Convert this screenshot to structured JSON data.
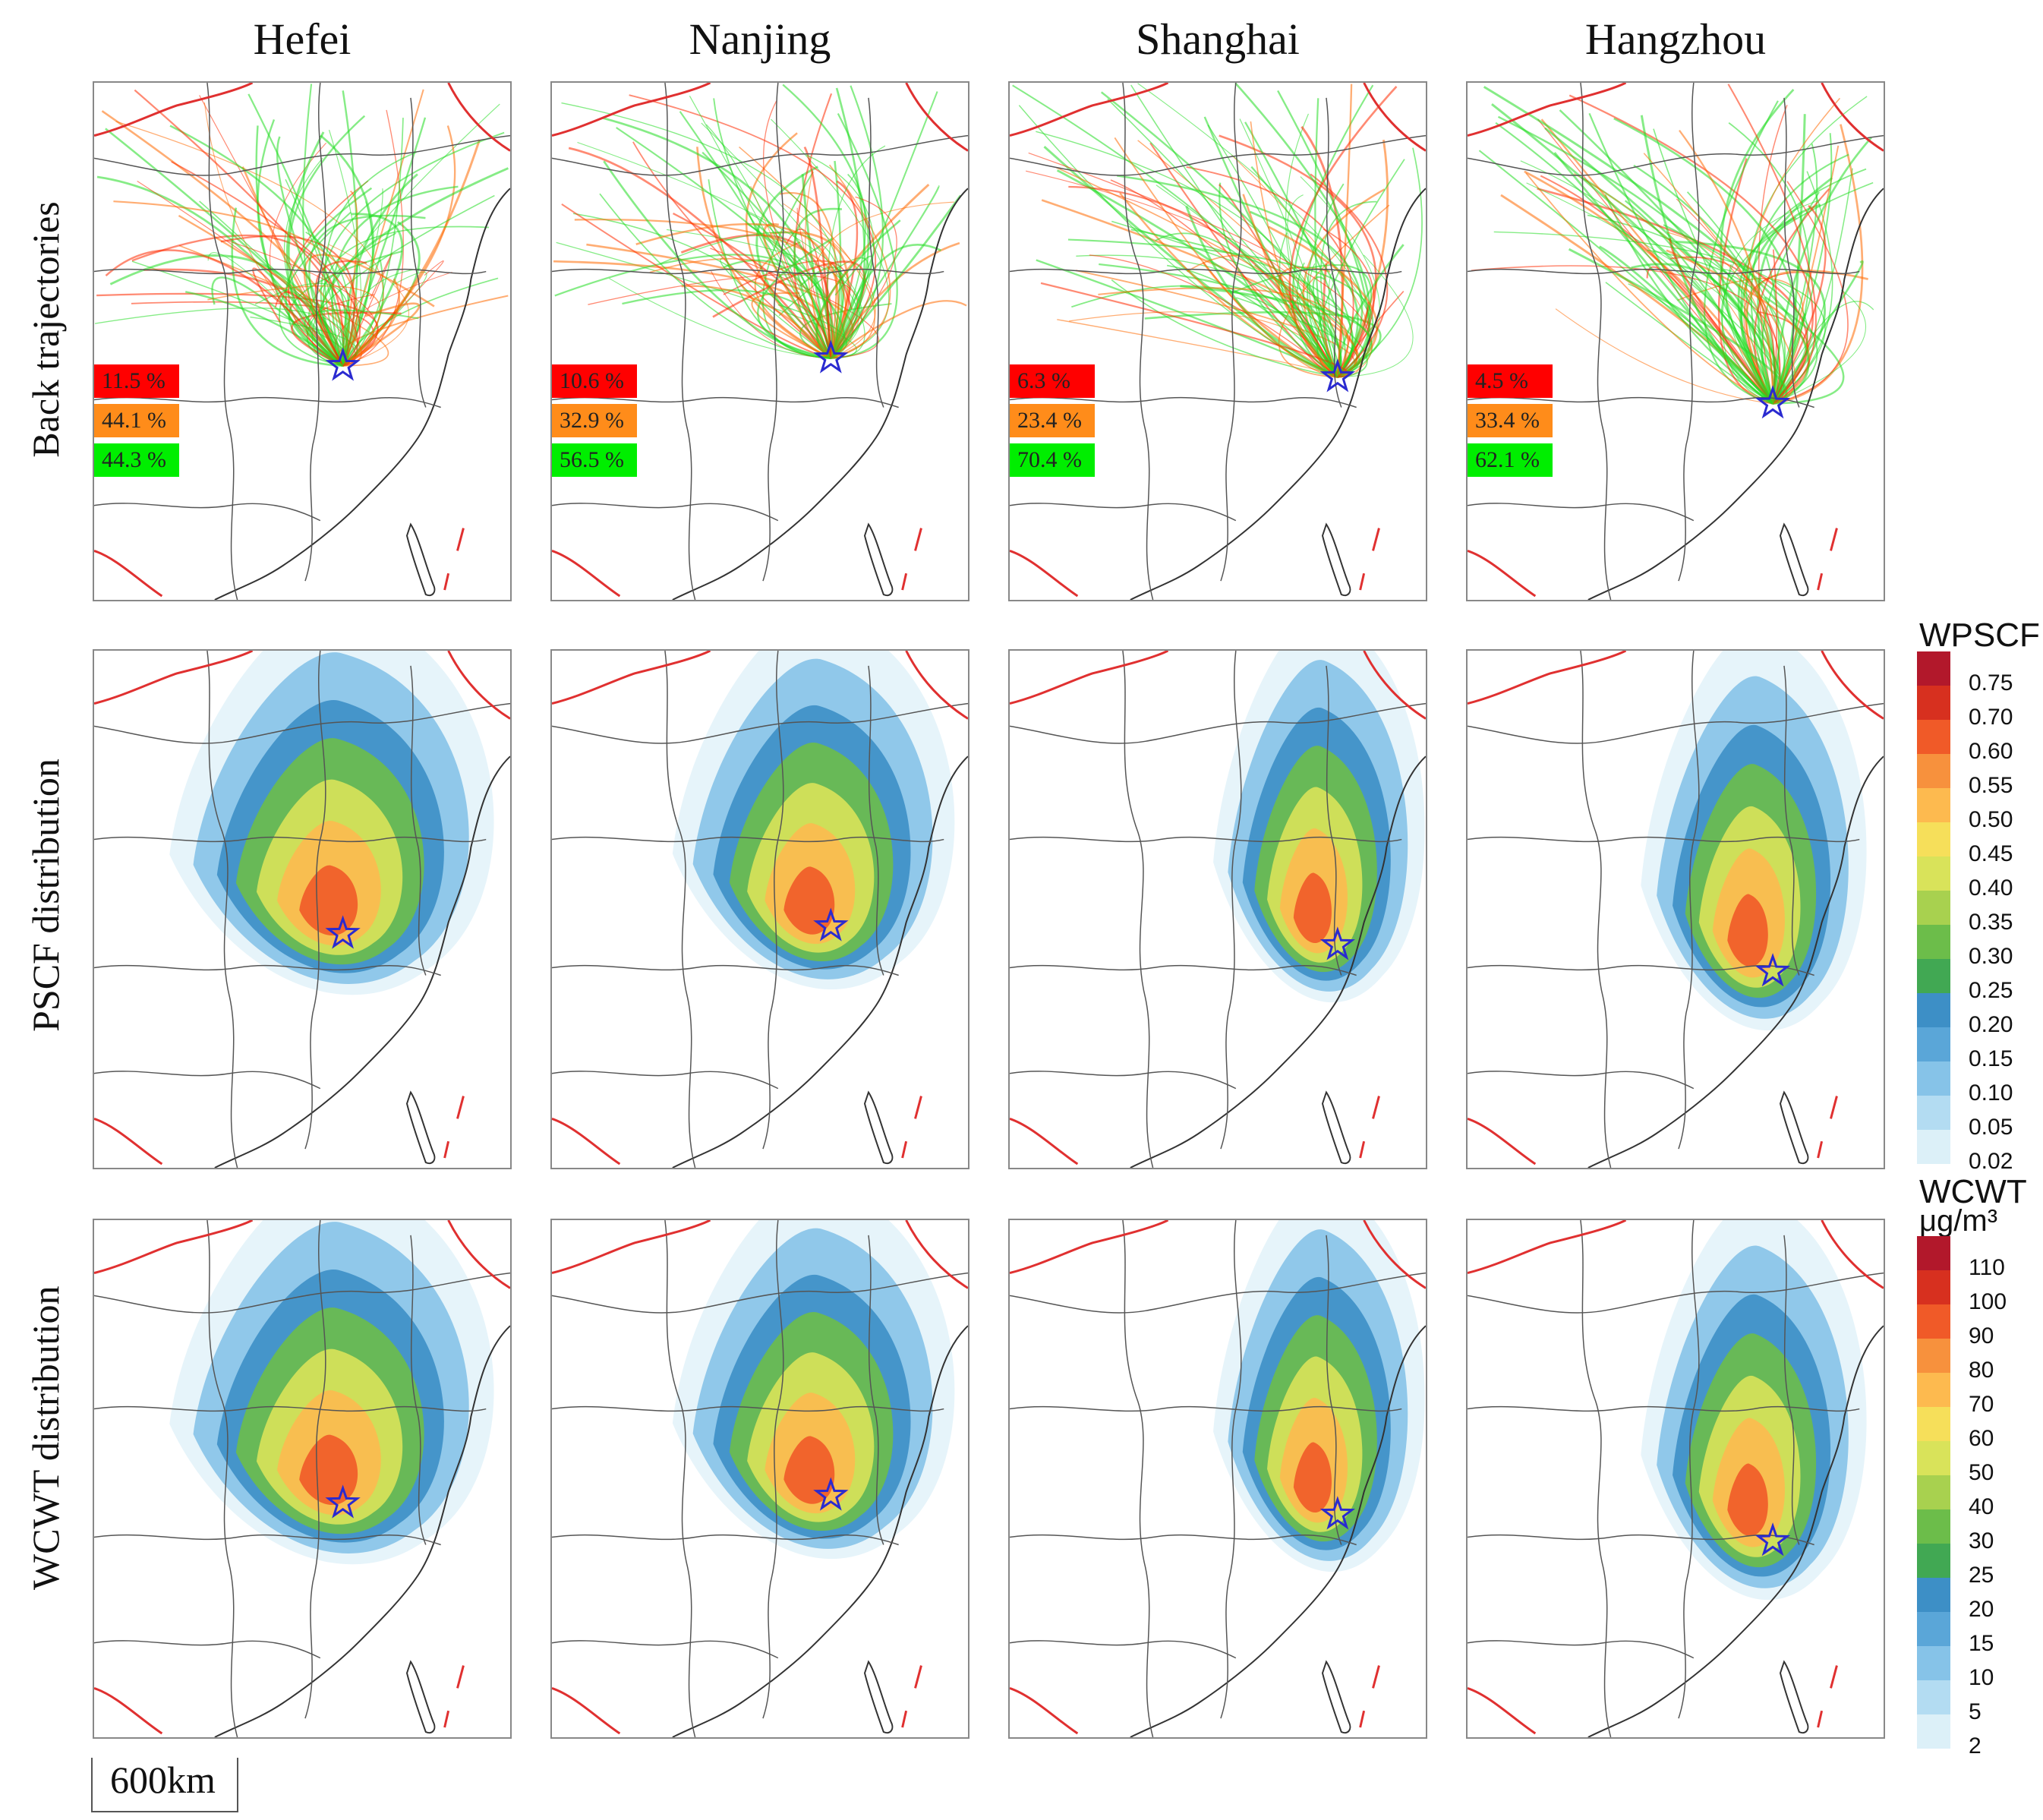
{
  "cities": [
    "Hefei",
    "Nanjing",
    "Shanghai",
    "Hangzhou"
  ],
  "row_labels": [
    "Back trajectories",
    "PSCF distribution",
    "WCWT distribution"
  ],
  "trajectory_percentages": [
    {
      "city": "Hefei",
      "red": "11.5 %",
      "orange": "44.1 %",
      "green": "44.3 %"
    },
    {
      "city": "Nanjing",
      "red": "10.6 %",
      "orange": "32.9 %",
      "green": "56.5 %"
    },
    {
      "city": "Shanghai",
      "red": "6.3 %",
      "orange": "23.4 %",
      "green": "70.4 %"
    },
    {
      "city": "Hangzhou",
      "red": "4.5 %",
      "orange": "33.4 %",
      "green": "62.1 %"
    }
  ],
  "wpscf_colorbar": {
    "title": "WPSCF",
    "ticks": [
      "0.75",
      "0.70",
      "0.60",
      "0.55",
      "0.50",
      "0.45",
      "0.40",
      "0.35",
      "0.30",
      "0.25",
      "0.20",
      "0.15",
      "0.10",
      "0.05",
      "0.02"
    ],
    "colors": [
      "#b2182b",
      "#d7301f",
      "#f05a28",
      "#f7913d",
      "#fdba4f",
      "#f6df5a",
      "#d9e35a",
      "#a8d14f",
      "#6cbd4a",
      "#41a853",
      "#3d8fc6",
      "#5aa6d8",
      "#86c3e8",
      "#b3dcf2",
      "#dcf0f8"
    ]
  },
  "wcwt_colorbar": {
    "title": "WCWT",
    "unit": "μg/m³",
    "ticks": [
      "110",
      "100",
      "90",
      "80",
      "70",
      "60",
      "50",
      "40",
      "30",
      "25",
      "20",
      "15",
      "10",
      "5",
      "2"
    ],
    "colors": [
      "#b2182b",
      "#d7301f",
      "#f05a28",
      "#f7913d",
      "#fdba4f",
      "#f6df5a",
      "#d9e35a",
      "#a8d14f",
      "#6cbd4a",
      "#41a853",
      "#3d8fc6",
      "#5aa6d8",
      "#86c3e8",
      "#b3dcf2",
      "#dcf0f8"
    ]
  },
  "scale_bar": "600km",
  "colors": {
    "high": "#ff0000",
    "medium": "#ff8c1a",
    "low": "#00ee00",
    "site_star": "#2a2ad0",
    "border": "#e03030"
  }
}
